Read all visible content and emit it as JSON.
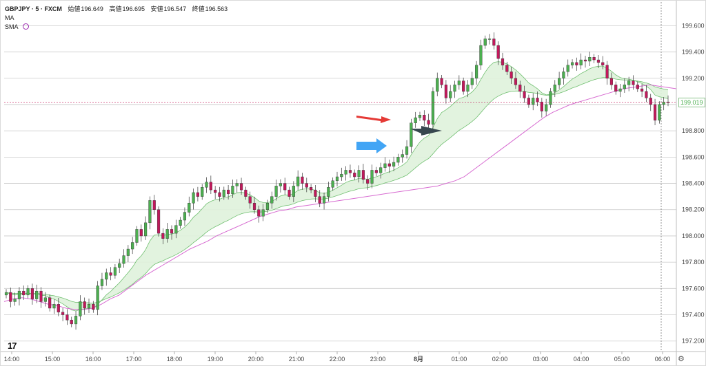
{
  "legend": {
    "symbol": "GBPJPY · 5 · FXCM",
    "open_label": "始値",
    "open": "196.649",
    "high_label": "高値",
    "high": "196.695",
    "low_label": "安値",
    "low": "196.547",
    "close_label": "終値",
    "close": "196.563",
    "ma_label": "MA",
    "sma_label": "SMA"
  },
  "logo": "17",
  "current_price": "199.019",
  "colors": {
    "up": "#4caf50",
    "down": "#c2185b",
    "band_fill": "#dff2dc",
    "band_line": "#6fbf6f",
    "sma_line": "#d76bd1",
    "red_arrow": "#e53935",
    "blue_arrow": "#42a5f5",
    "dark_arrow": "#37474f"
  },
  "chart_data": {
    "type": "candlestick",
    "title": "",
    "xlabel": "",
    "ylabel": "",
    "ylim": [
      197.12,
      199.78
    ],
    "y_ticks": [
      "199.600",
      "199.400",
      "199.200",
      "199.000",
      "198.800",
      "198.600",
      "198.400",
      "198.200",
      "198.000",
      "197.800",
      "197.600",
      "197.400",
      "197.200"
    ],
    "x_ticks": [
      "14:00",
      "15:00",
      "16:00",
      "17:00",
      "18:00",
      "19:00",
      "20:00",
      "21:00",
      "22:00",
      "23:00",
      "8月",
      "01:00",
      "02:00",
      "03:00",
      "04:00",
      "05:00",
      "06:00"
    ],
    "series": [
      {
        "values": [
          197.57,
          197.5,
          197.52,
          197.58,
          197.55,
          197.6,
          197.52,
          197.58,
          197.5,
          197.53,
          197.45,
          197.48,
          197.42,
          197.4,
          197.36,
          197.33,
          197.39,
          197.5,
          197.45,
          197.48,
          197.44,
          197.62,
          197.67,
          197.72,
          197.7,
          197.76,
          197.79,
          197.85,
          197.9,
          197.95,
          198.05,
          198.0,
          198.1,
          198.27,
          198.2,
          198.02,
          197.98,
          198.05,
          198.02,
          198.08,
          198.12,
          198.18,
          198.25,
          198.33,
          198.3,
          198.37,
          198.41,
          198.35,
          198.33,
          198.3,
          198.35,
          198.32,
          198.38,
          198.4,
          198.35,
          198.3,
          198.25,
          198.2,
          198.15,
          198.2,
          198.25,
          198.3,
          198.38,
          198.4,
          198.35,
          198.3,
          198.38,
          198.45,
          198.4,
          198.37,
          198.35,
          198.3,
          198.25,
          198.3,
          198.37,
          198.42,
          198.45,
          198.47,
          198.5,
          198.48,
          198.45,
          198.5,
          198.43,
          198.4,
          198.5,
          198.48,
          198.52,
          198.55,
          198.53,
          198.56,
          198.6,
          198.62,
          198.68,
          198.86,
          198.9,
          198.92,
          198.88,
          198.85,
          199.1,
          199.2,
          199.15,
          199.05,
          199.1,
          199.15,
          199.18,
          199.1,
          199.15,
          199.2,
          199.3,
          199.45,
          199.5,
          199.5,
          199.45,
          199.35,
          199.3,
          199.25,
          199.2,
          199.15,
          199.1,
          199.05,
          199.0,
          199.05,
          199.02,
          198.95,
          199.0,
          199.1,
          199.15,
          199.2,
          199.25,
          199.3,
          199.32,
          199.3,
          199.34,
          199.33,
          199.36,
          199.34,
          199.32,
          199.3,
          199.2,
          199.15,
          199.1,
          199.12,
          199.15,
          199.18,
          199.15,
          199.12,
          199.1,
          199.05,
          199.0,
          198.88,
          199.0,
          199.02,
          199.019
        ]
      },
      {
        "name": "",
        "values": [
          197.5,
          197.52,
          197.53,
          197.52,
          197.5,
          197.48,
          197.47,
          197.45,
          197.44,
          197.44,
          197.45,
          197.48,
          197.52,
          197.55,
          197.6,
          197.65,
          197.7,
          197.74,
          197.78,
          197.82,
          197.86,
          197.9,
          197.93,
          197.96,
          198.0,
          198.03,
          198.06,
          198.09,
          198.12,
          198.15,
          198.17,
          198.19,
          198.2,
          198.22,
          198.23,
          198.24,
          198.25,
          198.26,
          198.27,
          198.28,
          198.29,
          198.3,
          198.31,
          198.32,
          198.33,
          198.34,
          198.35,
          198.36,
          198.37,
          198.38,
          198.4,
          198.42,
          198.45,
          198.5,
          198.55,
          198.6,
          198.65,
          198.7,
          198.75,
          198.8,
          198.85,
          198.9,
          198.94,
          198.97,
          199.0,
          199.02,
          199.04,
          199.06,
          199.08,
          199.1,
          199.12,
          199.13,
          199.14,
          199.15,
          199.14,
          199.13,
          199.12
        ]
      }
    ]
  }
}
